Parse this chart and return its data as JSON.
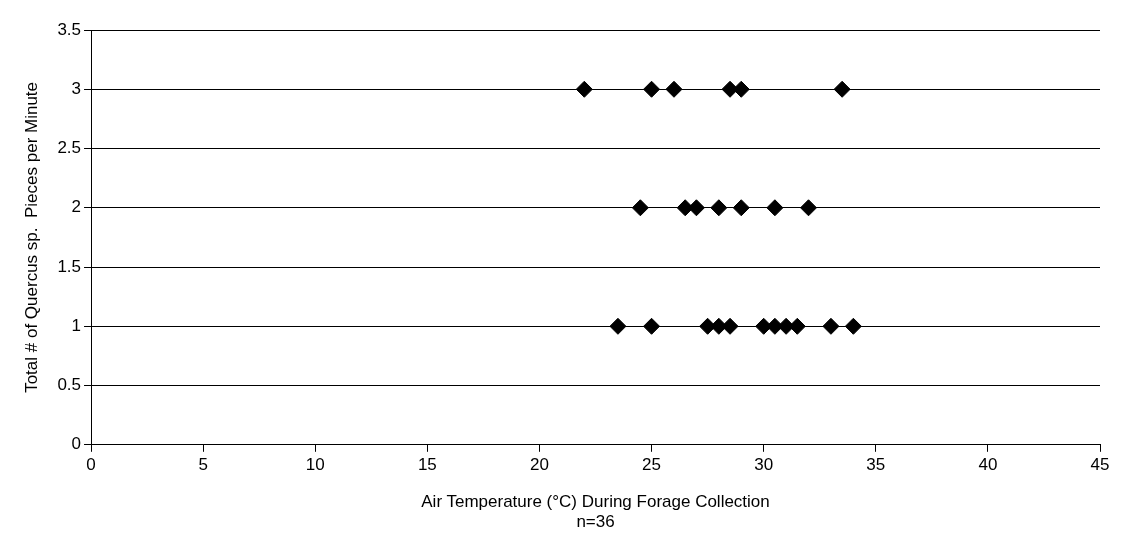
{
  "chart_data": {
    "type": "scatter",
    "xlabel": "Air Temperature (°C) During Forage Collection",
    "ylabel": "Total # of Quercus sp.  Pieces per Minute",
    "annotations": [
      "n=36"
    ],
    "series": [
      {
        "color": "#000000",
        "x": [
          22,
          25,
          26,
          28.5,
          29,
          33.5
        ],
        "values": [
          3,
          3,
          3,
          3,
          3,
          3
        ]
      },
      {
        "color": "#000000",
        "x": [
          24.5,
          26.5,
          27,
          28,
          29,
          30.5,
          32
        ],
        "values": [
          2,
          2,
          2,
          2,
          2,
          2,
          2
        ]
      },
      {
        "color": "#000000",
        "x": [
          23.5,
          25,
          27.5,
          28,
          28.5,
          30,
          30.5,
          31,
          31.5,
          33,
          34
        ],
        "values": [
          1,
          1,
          1,
          1,
          1,
          1,
          1,
          1,
          1,
          1,
          1
        ]
      }
    ],
    "xlim": [
      0,
      45
    ],
    "xticks": [
      0,
      5,
      10,
      15,
      20,
      25,
      30,
      35,
      40,
      45
    ],
    "ylim": [
      0,
      3.5
    ],
    "yticks": [
      0,
      0.5,
      1,
      1.5,
      2,
      2.5,
      3,
      3.5
    ],
    "grid": "y",
    "legend": false,
    "marker": "diamond"
  }
}
